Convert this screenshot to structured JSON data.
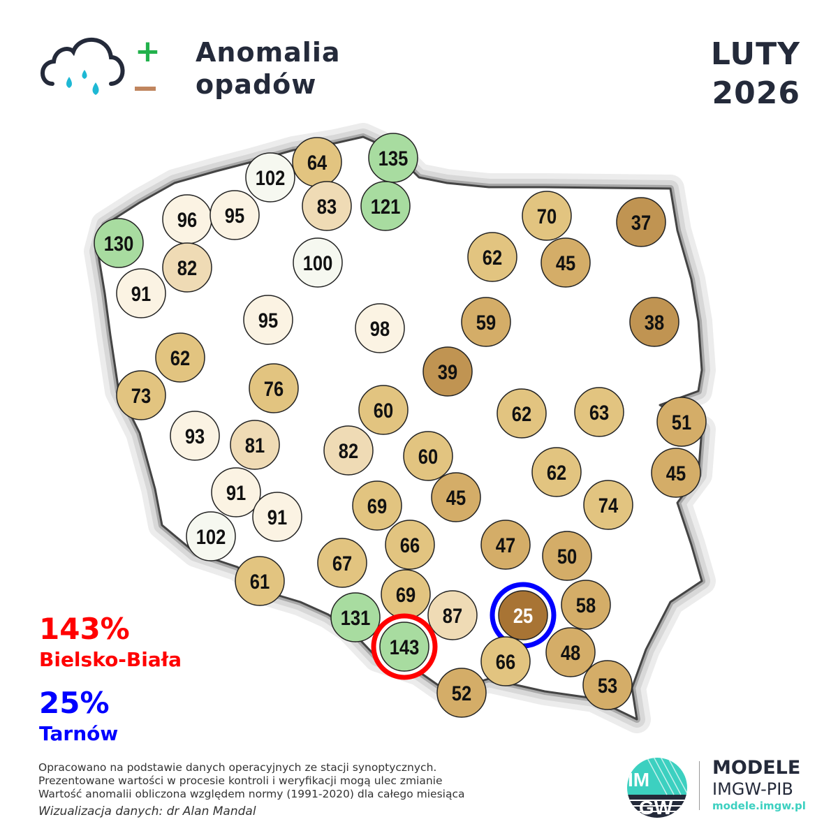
{
  "header": {
    "title_line1": "Anomalia",
    "title_line2": "opadów",
    "month": "LUTY",
    "year": "2026",
    "icon": "cloud-rain-icon",
    "plus_sign": "+",
    "plus_color": "#22b14c",
    "minus_color": "#c0855e"
  },
  "extremes": {
    "max": {
      "value": "143%",
      "station": "Bielsko-Biała",
      "color": "#ff0000"
    },
    "min": {
      "value": "25%",
      "station": "Tarnów",
      "color": "#0000ff"
    }
  },
  "stations": [
    64,
    135,
    102,
    83,
    121,
    96,
    95,
    130,
    82,
    91,
    100,
    70,
    37,
    62,
    45,
    95,
    98,
    59,
    38,
    62,
    39,
    73,
    76,
    60,
    62,
    63,
    51,
    93,
    81,
    82,
    60,
    62,
    45,
    91,
    45,
    74,
    91,
    69,
    102,
    66,
    47,
    50,
    67,
    61,
    69,
    131,
    87,
    25,
    58,
    143,
    66,
    48,
    53,
    52
  ],
  "color_scale": {
    "very_wet": "#a8dca0",
    "near_normal_high": "#f6f8f0",
    "near_normal": "#fbf3e3",
    "slightly_dry": "#efdbb5",
    "dry": "#e2c480",
    "very_dry": "#d4ad68",
    "extremely_dry": "#c09452",
    "minimum": "#a87434"
  },
  "footer": {
    "notes": [
      "Opracowano na podstawie danych operacyjnych ze stacji synoptycznych.",
      "Prezentowane wartości w procesie kontroli i weryfikacji mogą ulec zmianie",
      "Wartość anomalii obliczona względem normy (1991-2020) dla całego miesiąca"
    ],
    "credit": "Wizualizacja danych: dr Alan Mandal",
    "logo_text": "IMGW",
    "brand_line1": "MODELE",
    "brand_line2": "IMGW-PIB",
    "brand_url": "modele.imgw.pl"
  }
}
